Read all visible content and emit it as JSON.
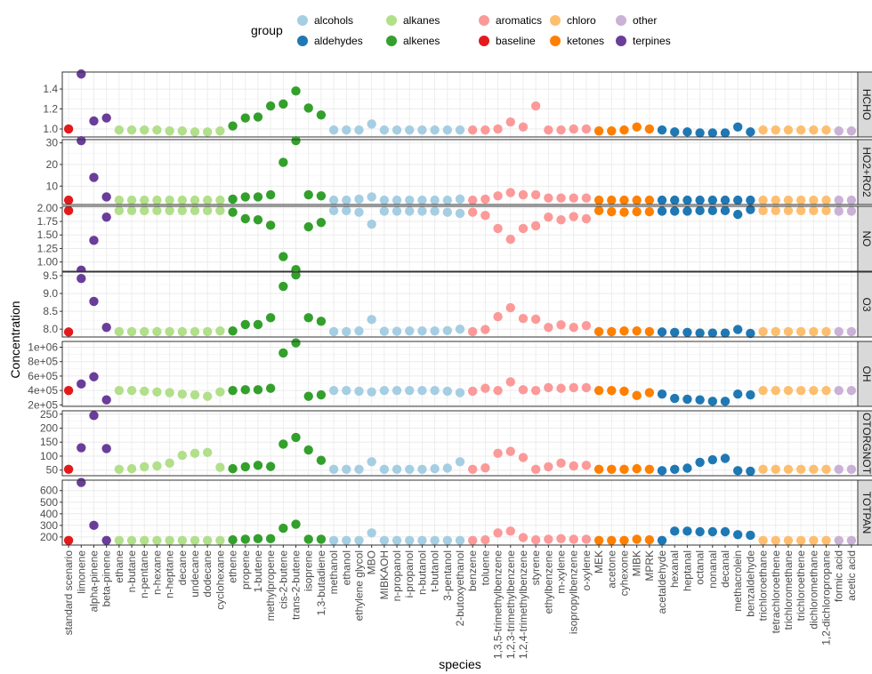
{
  "chart_data": {
    "type": "scatter",
    "xlabel": "species",
    "ylabel": "Concentration",
    "legend": {
      "title": "group",
      "placement": "top",
      "entries": [
        {
          "name": "alcohols",
          "color": "#a6cee3"
        },
        {
          "name": "aldehydes",
          "color": "#1f78b4"
        },
        {
          "name": "alkanes",
          "color": "#b2df8a"
        },
        {
          "name": "alkenes",
          "color": "#33a02c"
        },
        {
          "name": "aromatics",
          "color": "#fb9a99"
        },
        {
          "name": "baseline",
          "color": "#e31a1c"
        },
        {
          "name": "chloro",
          "color": "#fdbf6f"
        },
        {
          "name": "ketones",
          "color": "#ff7f00"
        },
        {
          "name": "other",
          "color": "#cab2d6"
        },
        {
          "name": "terpines",
          "color": "#6a3d9a"
        }
      ]
    },
    "species": [
      "standard scenario",
      "limonene",
      "alpha-pinene",
      "beta-pinene",
      "ethane",
      "n-butane",
      "n-pentane",
      "n-hexane",
      "n-heptane",
      "decane",
      "undecane",
      "dodecane",
      "cyclohexane",
      "ethene",
      "propene",
      "1-butene",
      "methylpropene",
      "cis-2-butene",
      "trans-2-butene",
      "isoprene",
      "1,3-butadiene",
      "methanol",
      "ethanol",
      "ethylene glycol",
      "MBO",
      "MIBKAOH",
      "n-propanol",
      "i-propanol",
      "n-butanol",
      "t-butanol",
      "3-pentanol",
      "2-butoxyethanol",
      "benzene",
      "toluene",
      "1,3,5-trimethylbenzene",
      "1,2,3-trimethylbenzene",
      "1,2,4-trimethylbenzene",
      "styrene",
      "ethylbenzene",
      "m-xylene",
      "isopropylbenzene",
      "o-xylene",
      "MEK",
      "acetone",
      "cyhexone",
      "MIBK",
      "MPRK",
      "acetaldehyde",
      "hexanal",
      "heptanal",
      "octanal",
      "nonanal",
      "decanal",
      "methacrolein",
      "benzaldehyde",
      "trichloroethane",
      "tetrachloroethene",
      "trichloromethane",
      "trichloroethene",
      "dichloromethane",
      "1,2-dichloropropane",
      "formic acid",
      "acetic acid"
    ],
    "groups": [
      "baseline",
      "terpines",
      "terpines",
      "terpines",
      "alkanes",
      "alkanes",
      "alkanes",
      "alkanes",
      "alkanes",
      "alkanes",
      "alkanes",
      "alkanes",
      "alkanes",
      "alkenes",
      "alkenes",
      "alkenes",
      "alkenes",
      "alkenes",
      "alkenes",
      "alkenes",
      "alkenes",
      "alcohols",
      "alcohols",
      "alcohols",
      "alcohols",
      "alcohols",
      "alcohols",
      "alcohols",
      "alcohols",
      "alcohols",
      "alcohols",
      "alcohols",
      "aromatics",
      "aromatics",
      "aromatics",
      "aromatics",
      "aromatics",
      "aromatics",
      "aromatics",
      "aromatics",
      "aromatics",
      "aromatics",
      "ketones",
      "ketones",
      "ketones",
      "ketones",
      "ketones",
      "aldehydes",
      "aldehydes",
      "aldehydes",
      "aldehydes",
      "aldehydes",
      "aldehydes",
      "aldehydes",
      "aldehydes",
      "chloro",
      "chloro",
      "chloro",
      "chloro",
      "chloro",
      "chloro",
      "other",
      "other"
    ],
    "panels": [
      {
        "strip": "HCHO",
        "ylim": [
          0.92,
          1.57
        ],
        "yticks": [
          1.0,
          1.2,
          1.4
        ],
        "ytick_labels": [
          "1.0",
          "1.2",
          "1.4"
        ],
        "values": [
          1.0,
          1.55,
          1.08,
          1.11,
          0.99,
          0.99,
          0.99,
          0.99,
          0.98,
          0.98,
          0.97,
          0.97,
          0.98,
          1.03,
          1.11,
          1.12,
          1.23,
          1.25,
          1.38,
          1.21,
          1.14,
          0.99,
          0.99,
          0.99,
          1.05,
          0.99,
          0.99,
          0.99,
          0.99,
          0.99,
          0.99,
          0.99,
          0.99,
          0.99,
          1.0,
          1.07,
          1.02,
          1.23,
          0.99,
          0.99,
          1.0,
          1.0,
          0.98,
          0.98,
          0.99,
          1.02,
          1.0,
          0.99,
          0.97,
          0.97,
          0.96,
          0.96,
          0.96,
          1.02,
          0.97,
          0.99,
          0.99,
          0.99,
          0.99,
          0.99,
          0.99,
          0.98,
          0.98
        ]
      },
      {
        "strip": "HO2+RO2",
        "ylim": [
          1.5,
          31.5
        ],
        "yticks": [
          10,
          20,
          30
        ],
        "ytick_labels": [
          "10",
          "20",
          "30"
        ],
        "values": [
          3.5,
          31,
          14,
          5,
          3.5,
          3.5,
          3.5,
          3.5,
          3.5,
          3.5,
          3.5,
          3.5,
          3.5,
          4,
          5,
          5,
          6,
          21,
          31,
          6,
          5.5,
          3.5,
          3.5,
          4,
          5,
          3.5,
          3.5,
          3.5,
          3.5,
          3.5,
          3.5,
          4,
          3.5,
          4,
          5.5,
          7,
          6,
          6,
          4.5,
          4.5,
          4.5,
          4.5,
          3.5,
          3.5,
          3.5,
          3.5,
          3.5,
          3.5,
          3.5,
          3.5,
          3.5,
          3.5,
          3.5,
          3.5,
          3.5,
          3.5,
          3.5,
          3.5,
          3.5,
          3.5,
          3.5,
          3.5,
          3.5
        ]
      },
      {
        "strip": "NO",
        "ylim": [
          0.83,
          2.03
        ],
        "yticks": [
          1.0,
          1.25,
          1.5,
          1.75,
          2.0
        ],
        "ytick_labels": [
          "1.00",
          "1.25",
          "1.50",
          "1.75",
          "2.00"
        ],
        "values": [
          1.95,
          0.85,
          1.4,
          1.83,
          1.95,
          1.95,
          1.95,
          1.95,
          1.95,
          1.95,
          1.95,
          1.95,
          1.95,
          1.92,
          1.8,
          1.78,
          1.68,
          1.1,
          0.86,
          1.65,
          1.73,
          1.95,
          1.95,
          1.92,
          1.7,
          1.94,
          1.94,
          1.94,
          1.94,
          1.94,
          1.92,
          1.9,
          1.92,
          1.86,
          1.62,
          1.42,
          1.62,
          1.67,
          1.83,
          1.78,
          1.84,
          1.8,
          1.95,
          1.93,
          1.92,
          1.93,
          1.93,
          1.94,
          1.94,
          1.94,
          1.95,
          1.95,
          1.95,
          1.88,
          1.97,
          1.95,
          1.95,
          1.95,
          1.95,
          1.95,
          1.95,
          1.94,
          1.94
        ]
      },
      {
        "strip": "O3",
        "ylim": [
          7.78,
          9.6
        ],
        "yticks": [
          8.0,
          8.5,
          9.0,
          9.5
        ],
        "ytick_labels": [
          "8.0",
          "8.5",
          "9.0",
          "9.5"
        ],
        "values": [
          7.92,
          9.42,
          8.78,
          8.05,
          7.93,
          7.93,
          7.93,
          7.93,
          7.93,
          7.93,
          7.93,
          7.93,
          7.95,
          7.95,
          8.13,
          8.13,
          8.32,
          9.2,
          9.52,
          8.32,
          8.22,
          7.93,
          7.93,
          7.95,
          8.27,
          7.94,
          7.94,
          7.95,
          7.95,
          7.95,
          7.96,
          8.0,
          7.93,
          7.99,
          8.35,
          8.6,
          8.3,
          8.28,
          8.05,
          8.12,
          8.05,
          8.1,
          7.93,
          7.93,
          7.95,
          7.95,
          7.93,
          7.92,
          7.91,
          7.91,
          7.89,
          7.89,
          7.89,
          7.99,
          7.88,
          7.93,
          7.93,
          7.93,
          7.93,
          7.93,
          7.93,
          7.93,
          7.93
        ]
      },
      {
        "strip": "OH",
        "ylim": [
          180000,
          1080000
        ],
        "yticks": [
          200000,
          400000,
          600000,
          800000,
          1000000
        ],
        "ytick_labels": [
          "2e+05",
          "4e+05",
          "6e+05",
          "8e+05",
          "1e+06"
        ],
        "values": [
          400000,
          490000,
          590000,
          270000,
          400000,
          400000,
          390000,
          380000,
          370000,
          350000,
          340000,
          320000,
          380000,
          400000,
          410000,
          410000,
          430000,
          920000,
          1060000,
          320000,
          340000,
          400000,
          400000,
          390000,
          380000,
          400000,
          400000,
          400000,
          400000,
          400000,
          390000,
          370000,
          390000,
          430000,
          400000,
          520000,
          410000,
          400000,
          440000,
          430000,
          440000,
          440000,
          400000,
          400000,
          390000,
          330000,
          370000,
          350000,
          290000,
          280000,
          270000,
          250000,
          250000,
          350000,
          340000,
          400000,
          400000,
          400000,
          400000,
          400000,
          400000,
          400000,
          400000
        ]
      },
      {
        "strip": "OTORGNOT",
        "ylim": [
          30,
          262
        ],
        "yticks": [
          50,
          100,
          150,
          200,
          250
        ],
        "ytick_labels": [
          "50",
          "100",
          "150",
          "200",
          "250"
        ],
        "values": [
          53,
          130,
          245,
          127,
          53,
          55,
          62,
          65,
          75,
          103,
          110,
          113,
          60,
          55,
          62,
          67,
          63,
          143,
          167,
          122,
          85,
          53,
          53,
          53,
          80,
          53,
          53,
          53,
          53,
          55,
          57,
          80,
          53,
          58,
          110,
          117,
          95,
          53,
          62,
          75,
          65,
          67,
          53,
          53,
          53,
          55,
          53,
          48,
          53,
          57,
          78,
          87,
          92,
          48,
          46,
          53,
          53,
          53,
          53,
          53,
          53,
          53,
          53
        ]
      },
      {
        "strip": "TOTPAN",
        "ylim": [
          130,
          690
        ],
        "yticks": [
          200,
          300,
          400,
          500,
          600
        ],
        "ytick_labels": [
          "200",
          "300",
          "400",
          "500",
          "600"
        ],
        "values": [
          170,
          670,
          300,
          170,
          170,
          170,
          170,
          170,
          170,
          170,
          170,
          170,
          170,
          175,
          180,
          185,
          185,
          275,
          310,
          180,
          180,
          170,
          170,
          170,
          235,
          170,
          170,
          170,
          170,
          170,
          170,
          170,
          170,
          175,
          235,
          250,
          195,
          175,
          180,
          185,
          180,
          180,
          170,
          170,
          170,
          180,
          175,
          170,
          250,
          250,
          245,
          245,
          245,
          220,
          215,
          170,
          170,
          170,
          170,
          170,
          170,
          170,
          170
        ]
      }
    ]
  }
}
